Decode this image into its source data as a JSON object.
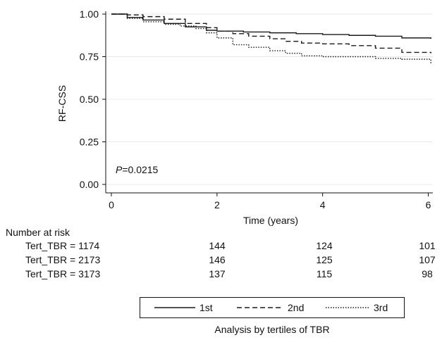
{
  "chart_data": {
    "type": "line",
    "title": "",
    "xlabel": "Time (years)",
    "ylabel": "RF-CSS",
    "xlim": [
      0,
      6.1
    ],
    "ylim": [
      0,
      1.0
    ],
    "x_ticks": [
      "0",
      "2",
      "4",
      "6"
    ],
    "y_ticks": [
      "0.00",
      "0.25",
      "0.50",
      "0.75",
      "1.00"
    ],
    "grid": "horizontal",
    "annotation_p": "P",
    "annotation_value": "=0.0215",
    "series": [
      {
        "name": "1st",
        "style": "solid",
        "x": [
          0,
          0.3,
          0.6,
          1.0,
          1.4,
          1.8,
          2.0,
          2.5,
          3.0,
          3.5,
          4.0,
          4.5,
          5.0,
          5.5,
          6.05
        ],
        "y": [
          1.0,
          0.98,
          0.965,
          0.945,
          0.925,
          0.905,
          0.9,
          0.895,
          0.89,
          0.885,
          0.88,
          0.875,
          0.87,
          0.86,
          0.855
        ]
      },
      {
        "name": "2nd",
        "style": "dashed",
        "x": [
          0,
          0.3,
          0.6,
          1.0,
          1.4,
          1.8,
          2.0,
          2.3,
          2.6,
          3.0,
          3.3,
          3.6,
          4.0,
          4.5,
          5.0,
          5.5,
          6.05
        ],
        "y": [
          1.0,
          0.995,
          0.985,
          0.97,
          0.945,
          0.92,
          0.9,
          0.885,
          0.87,
          0.855,
          0.84,
          0.83,
          0.825,
          0.815,
          0.8,
          0.775,
          0.77
        ]
      },
      {
        "name": "3rd",
        "style": "dotted",
        "x": [
          0,
          0.3,
          0.6,
          1.0,
          1.3,
          1.6,
          1.8,
          2.0,
          2.3,
          2.6,
          3.0,
          3.3,
          3.6,
          4.0,
          4.5,
          5.0,
          5.5,
          6.05
        ],
        "y": [
          1.0,
          0.975,
          0.955,
          0.94,
          0.93,
          0.915,
          0.89,
          0.86,
          0.82,
          0.805,
          0.785,
          0.77,
          0.755,
          0.75,
          0.75,
          0.74,
          0.735,
          0.705
        ]
      }
    ]
  },
  "risk_table": {
    "heading": "Number at risk",
    "rows": [
      {
        "label": "Tert_TBR = 1174",
        "values": [
          "144",
          "124",
          "101"
        ]
      },
      {
        "label": "Tert_TBR = 2173",
        "values": [
          "146",
          "125",
          "107"
        ]
      },
      {
        "label": "Tert_TBR = 3173",
        "values": [
          "137",
          "115",
          "98"
        ]
      }
    ]
  },
  "legend": {
    "items": [
      {
        "label": "1st",
        "style": "solid"
      },
      {
        "label": "2nd",
        "style": "dashed"
      },
      {
        "label": "3rd",
        "style": "dotted"
      }
    ]
  },
  "caption": "Analysis by tertiles of TBR",
  "colors": {
    "line": "#1a1a1a",
    "grid": "#e8e8e8",
    "axis": "#111111"
  }
}
